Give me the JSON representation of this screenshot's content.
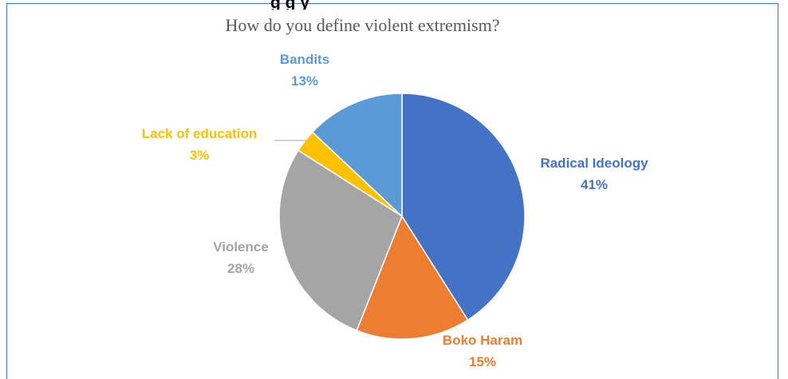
{
  "heading_fragment": "g                                                  g                  y",
  "chart_data": {
    "type": "pie",
    "title": "How do you define violent extremism?",
    "slices": [
      {
        "label": "Radical Ideology",
        "value": 41,
        "value_text": "41%",
        "color": "#4472c4"
      },
      {
        "label": "Boko Haram",
        "value": 15,
        "value_text": "15%",
        "color": "#ed7d31"
      },
      {
        "label": "Violence",
        "value": 28,
        "value_text": "28%",
        "color": "#a5a5a5"
      },
      {
        "label": "Lack of education",
        "value": 3,
        "value_text": "3%",
        "color": "#ffc000"
      },
      {
        "label": "Bandits",
        "value": 13,
        "value_text": "13%",
        "color": "#5b9bd5"
      }
    ],
    "legend": "none",
    "data_labels": "outside"
  }
}
